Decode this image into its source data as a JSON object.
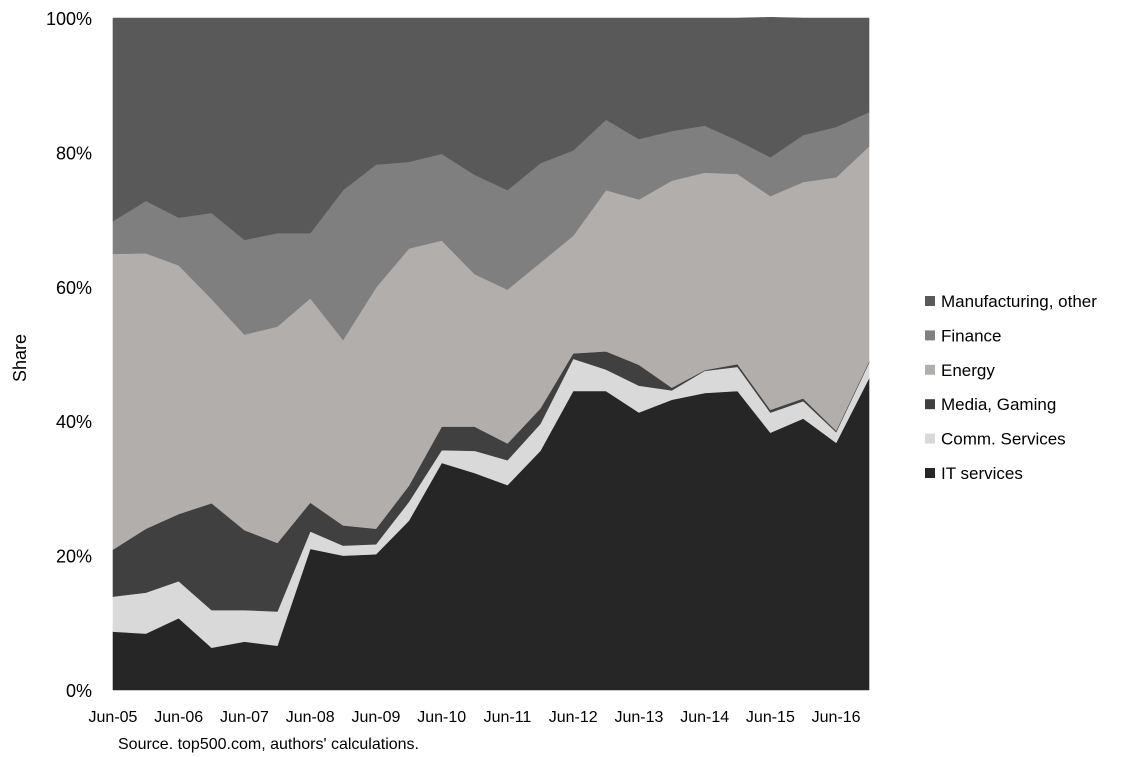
{
  "chart_data": {
    "type": "area",
    "stacked": true,
    "ylabel": "Share",
    "ylim": [
      0,
      100
    ],
    "y_ticks": [
      "0%",
      "20%",
      "40%",
      "60%",
      "80%",
      "100%"
    ],
    "x": [
      0,
      0.5,
      1,
      1.5,
      2,
      2.5,
      3,
      3.5,
      4,
      4.5,
      5,
      5.5,
      6,
      6.5,
      7,
      7.5,
      8,
      8.5,
      9,
      9.5,
      10,
      10.5,
      11,
      11.5
    ],
    "x_tick_labels": [
      "Jun-05",
      "Jun-06",
      "Jun-07",
      "Jun-08",
      "Jun-09",
      "Jun-10",
      "Jun-11",
      "Jun-12",
      "Jun-13",
      "Jun-14",
      "Jun-15",
      "Jun-16"
    ],
    "source_note": "Source. top500.com, authors' calculations.",
    "legend_position": "right",
    "series": [
      {
        "name": "IT services",
        "color": "#262626",
        "values": [
          8.7,
          8.4,
          10.7,
          6.3,
          7.2,
          6.6,
          21.0,
          20.0,
          20.2,
          25.2,
          33.8,
          32.3,
          30.5,
          35.6,
          44.5,
          44.5,
          41.3,
          43.2,
          44.2,
          44.5,
          38.3,
          40.4,
          36.8,
          46.4
        ]
      },
      {
        "name": "Comm. Services",
        "color": "#d9d9d9",
        "values": [
          5.2,
          6.1,
          5.5,
          5.6,
          4.7,
          5.1,
          2.6,
          1.5,
          1.5,
          2.8,
          1.9,
          3.3,
          3.7,
          4.0,
          4.8,
          3.2,
          4.0,
          1.4,
          3.3,
          3.6,
          3.0,
          2.6,
          1.6,
          2.3
        ]
      },
      {
        "name": "Media, Gaming",
        "color": "#404040",
        "values": [
          7.0,
          9.5,
          10.0,
          15.9,
          11.9,
          10.2,
          4.3,
          3.0,
          2.3,
          2.4,
          3.5,
          3.6,
          2.5,
          2.3,
          0.8,
          2.7,
          3.1,
          0.4,
          0.1,
          0.4,
          0.4,
          0.4,
          0.2,
          0.2
        ]
      },
      {
        "name": "Energy",
        "color": "#b2aeac",
        "values": [
          44.0,
          41.0,
          37.0,
          30.4,
          29.1,
          32.2,
          30.4,
          27.6,
          35.9,
          35.3,
          27.7,
          22.7,
          22.9,
          21.7,
          17.5,
          24.0,
          24.6,
          30.8,
          29.4,
          28.3,
          31.8,
          32.2,
          37.7,
          32.0
        ]
      },
      {
        "name": "Finance",
        "color": "#7f7f7f",
        "values": [
          4.9,
          7.8,
          7.1,
          12.8,
          14.1,
          13.9,
          9.7,
          22.3,
          18.3,
          12.9,
          12.9,
          14.8,
          14.8,
          14.8,
          12.7,
          10.5,
          9.0,
          7.4,
          7.0,
          5.0,
          5.8,
          7.0,
          7.5,
          5.1
        ]
      },
      {
        "name": "Manufacturing, other",
        "color": "#595959",
        "values": [
          30.2,
          27.2,
          29.7,
          29.0,
          33.0,
          32.0,
          32.0,
          25.6,
          21.8,
          21.4,
          20.2,
          23.3,
          25.6,
          21.6,
          19.7,
          15.1,
          18.0,
          16.8,
          16.0,
          18.2,
          20.8,
          17.4,
          16.2,
          14.0
        ]
      }
    ]
  }
}
